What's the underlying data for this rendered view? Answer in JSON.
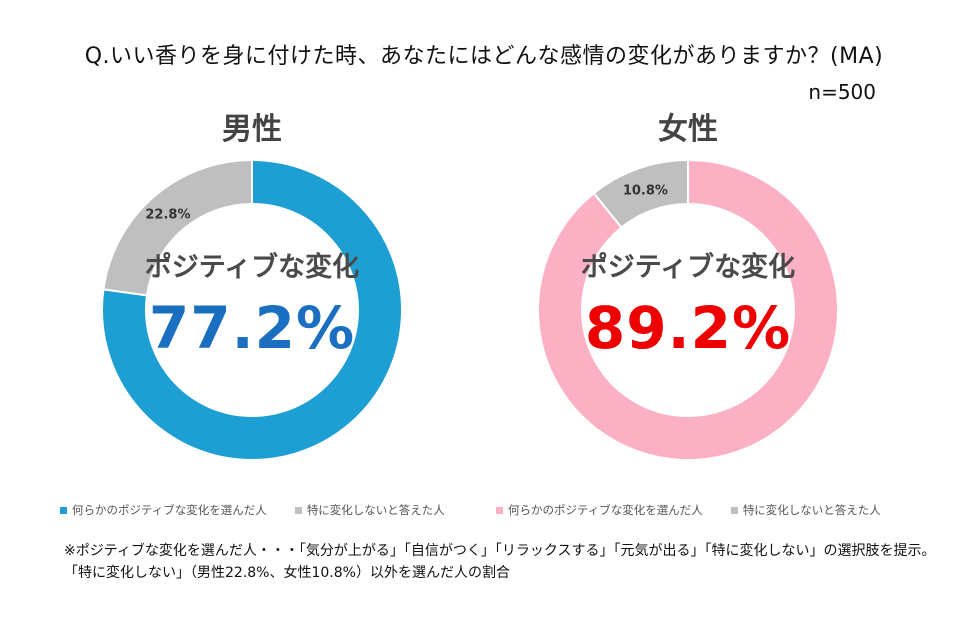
{
  "title": "Q.いい香りを身に付けた時、あなたにはどんな感情の変化がありますか？(MA)",
  "sample_size": "n=500",
  "colors": {
    "male_positive": "#1e9fd4",
    "female_positive": "#fbb1c3",
    "no_change": "#bfbfbf",
    "male_value_text": "#1a6fc0",
    "female_value_text": "#ee0000"
  },
  "chart_data": [
    {
      "type": "pie",
      "variant": "donut",
      "title": "男性",
      "center_label": "ポジティブな変化",
      "center_value": "77.2%",
      "categories": [
        "何らかのポジティブな変化を選んだ人",
        "特に変化しないと答えた人"
      ],
      "values": [
        77.2,
        22.8
      ],
      "labels": [
        "",
        "22.8%"
      ],
      "colors": [
        "#1e9fd4",
        "#bfbfbf"
      ],
      "legend_position": "bottom"
    },
    {
      "type": "pie",
      "variant": "donut",
      "title": "女性",
      "center_label": "ポジティブな変化",
      "center_value": "89.2%",
      "categories": [
        "何らかのポジティブな変化を選んだ人",
        "特に変化しないと答えた人"
      ],
      "values": [
        89.2,
        10.8
      ],
      "labels": [
        "",
        "10.8%"
      ],
      "colors": [
        "#fbb1c3",
        "#bfbfbf"
      ],
      "legend_position": "bottom"
    }
  ],
  "notes": [
    "※ポジティブな変化を選んだ人・・・「気分が上がる」「自信がつく」「リラックスする」「元気が出る」「特に変化しない」の選択肢を提示。",
    "「特に変化しない」（男性22.8%、女性10.8%）以外を選んだ人の割合"
  ]
}
